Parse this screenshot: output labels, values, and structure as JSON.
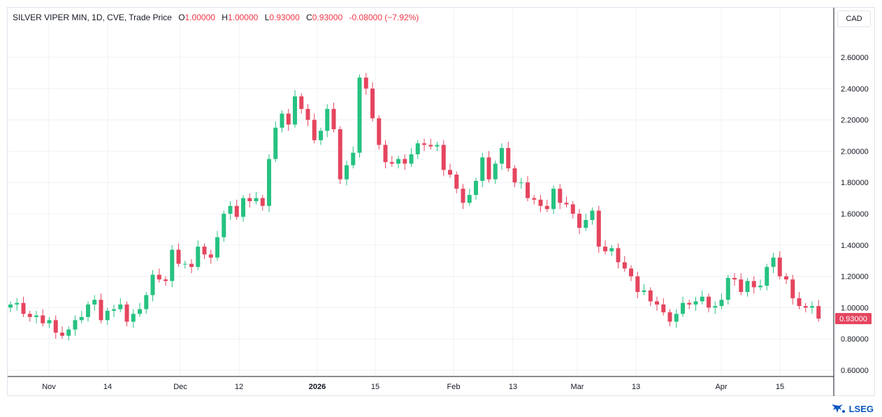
{
  "legend": {
    "title": "SILVER VIPER MIN, 1D, CVE, Trade Price",
    "open_label": "O",
    "open": "1.00000",
    "high_label": "H",
    "high": "1.00000",
    "low_label": "L",
    "low": "0.93000",
    "close_label": "C",
    "close": "0.93000",
    "change": "-0.08000 (−7.92%)"
  },
  "currency": "CAD",
  "last_price_label": "0.93000",
  "brand": "LSEG",
  "colors": {
    "up": "#26c281",
    "down": "#e5455f",
    "grid": "#eff1f5",
    "axis_text": "#131722"
  },
  "chart_data": {
    "type": "candlestick",
    "y_ticks": [
      "2.60000",
      "2.40000",
      "2.20000",
      "2.00000",
      "1.80000",
      "1.60000",
      "1.40000",
      "1.20000",
      "1.00000",
      "0.80000",
      "0.60000"
    ],
    "y_range": [
      0.55,
      2.72
    ],
    "x_tick_labels": [
      "Nov",
      "14",
      "Dec",
      "12",
      "2026",
      "15",
      "Feb",
      "13",
      "Mar",
      "13",
      "Apr",
      "15"
    ],
    "close_series": [
      1.02,
      1.03,
      0.96,
      0.94,
      0.95,
      0.9,
      0.92,
      0.84,
      0.82,
      0.86,
      0.92,
      0.94,
      1.02,
      1.05,
      0.92,
      0.98,
      0.99,
      1.02,
      0.91,
      0.96,
      0.99,
      1.08,
      1.21,
      1.18,
      1.17,
      1.37,
      1.28,
      1.28,
      1.26,
      1.39,
      1.34,
      1.32,
      1.45,
      1.6,
      1.65,
      1.58,
      1.7,
      1.68,
      1.7,
      1.65,
      1.95,
      2.15,
      2.24,
      2.17,
      2.35,
      2.27,
      2.2,
      2.07,
      2.13,
      2.27,
      2.14,
      1.82,
      1.91,
      1.99,
      2.47,
      2.4,
      2.21,
      2.04,
      1.93,
      1.92,
      1.95,
      1.92,
      1.98,
      2.05,
      2.04,
      2.03,
      2.04,
      1.88,
      1.85,
      1.76,
      1.67,
      1.72,
      1.81,
      1.96,
      1.82,
      1.92,
      2.02,
      1.89,
      1.8,
      1.8,
      1.7,
      1.69,
      1.65,
      1.63,
      1.76,
      1.67,
      1.66,
      1.6,
      1.51,
      1.56,
      1.62,
      1.39,
      1.36,
      1.38,
      1.29,
      1.25,
      1.2,
      1.1,
      1.11,
      1.04,
      1.02,
      0.97,
      0.91,
      0.96,
      1.03,
      1.02,
      1.04,
      1.07,
      1.0,
      1.01,
      1.05,
      1.19,
      1.18,
      1.1,
      1.17,
      1.13,
      1.14,
      1.26,
      1.32,
      1.2,
      1.18,
      1.06,
      1.01,
      1.0,
      1.01,
      0.93
    ]
  }
}
